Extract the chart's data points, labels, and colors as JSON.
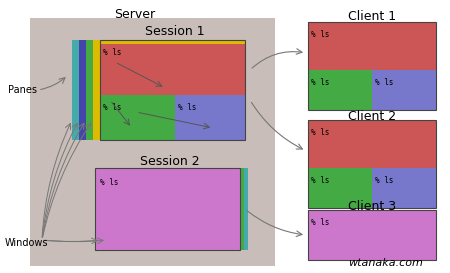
{
  "bg_color": "#c8bdb8",
  "server_label": "Server",
  "session1_label": "Session 1",
  "session2_label": "Session 2",
  "panes_label": "Panes",
  "windows_label": "Windows",
  "wtanaka_label": "wtanaka.com",
  "client1_label": "Client 1",
  "client2_label": "Client 2",
  "client3_label": "Client 3",
  "red_color": "#cc5555",
  "green_color": "#44aa44",
  "blue_color": "#7777cc",
  "yellow_color": "#ddbb00",
  "purple_color": "#cc77cc",
  "frame_colors": [
    "#44aaaa",
    "#4444aa",
    "#44aa44",
    "#ddbb00",
    "#333344"
  ],
  "pane_label": "% ls",
  "arrow_color": "#777777"
}
